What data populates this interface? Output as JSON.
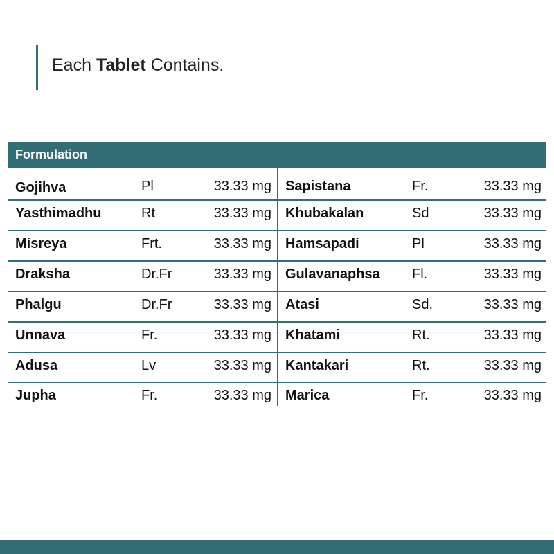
{
  "heading": {
    "prefix": "Each ",
    "bold": "Tablet",
    "suffix": " Contains."
  },
  "table": {
    "header": "Formulation",
    "left": [
      {
        "name": "Gojihva",
        "part": "Pl",
        "dose": "33.33 mg"
      },
      {
        "name": "Yasthimadhu",
        "part": "Rt",
        "dose": "33.33 mg"
      },
      {
        "name": "Misreya",
        "part": "Frt.",
        "dose": "33.33 mg"
      },
      {
        "name": "Draksha",
        "part": "Dr.Fr",
        "dose": "33.33 mg"
      },
      {
        "name": "Phalgu",
        "part": "Dr.Fr",
        "dose": "33.33 mg"
      },
      {
        "name": "Unnava",
        "part": "Fr.",
        "dose": "33.33 mg"
      },
      {
        "name": "Adusa",
        "part": "Lv",
        "dose": "33.33 mg"
      },
      {
        "name": "Jupha",
        "part": "Fr.",
        "dose": "33.33 mg"
      }
    ],
    "right": [
      {
        "name": "Sapistana",
        "part": "Fr.",
        "dose": "33.33 mg"
      },
      {
        "name": "Khubakalan",
        "part": "Sd",
        "dose": "33.33 mg"
      },
      {
        "name": "Hamsapadi",
        "part": "Pl",
        "dose": "33.33 mg"
      },
      {
        "name": "Gulavanaphsa",
        "part": "Fl.",
        "dose": "33.33 mg"
      },
      {
        "name": "Atasi",
        "part": "Sd.",
        "dose": "33.33 mg"
      },
      {
        "name": "Khatami",
        "part": "Rt.",
        "dose": "33.33 mg"
      },
      {
        "name": "Kantakari",
        "part": "Rt.",
        "dose": "33.33 mg"
      },
      {
        "name": "Marica",
        "part": "Fr.",
        "dose": "33.33 mg"
      }
    ]
  },
  "colors": {
    "accent": "#336e76"
  }
}
